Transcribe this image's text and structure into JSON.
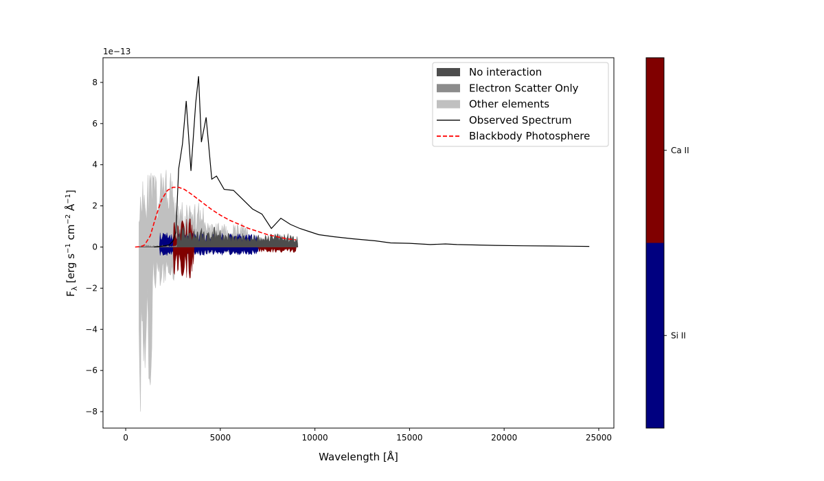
{
  "chart_data": {
    "type": "line",
    "xlabel": "Wavelength [Å]",
    "ylabel": {
      "base": "F",
      "sub": "λ",
      "units_prefix": " [erg s",
      "units_mid1": " cm",
      "units_mid2": " Å",
      "units_suffix": "]",
      "exp": "−1",
      "exp2": "−2"
    },
    "y_multiplier": "1e−13",
    "xlim": [
      -1200,
      25800
    ],
    "ylim": [
      -8.8,
      9.2
    ],
    "x_ticks": [
      0,
      5000,
      10000,
      15000,
      20000,
      25000
    ],
    "x_tick_labels": [
      "0",
      "5000",
      "10000",
      "15000",
      "20000",
      "25000"
    ],
    "y_ticks": [
      -8,
      -6,
      -4,
      -2,
      0,
      2,
      4,
      6,
      8
    ],
    "y_tick_labels": [
      "−8",
      "−6",
      "−4",
      "−2",
      "0",
      "2",
      "4",
      "6",
      "8"
    ],
    "legend": {
      "position": "top-right",
      "entries": [
        {
          "label": "No interaction",
          "kind": "patch",
          "color": "#4d4d4d"
        },
        {
          "label": "Electron Scatter Only",
          "kind": "patch",
          "color": "#8c8c8c"
        },
        {
          "label": "Other elements",
          "kind": "patch",
          "color": "#c0c0c0"
        },
        {
          "label": "Observed Spectrum",
          "kind": "line",
          "color": "#000000"
        },
        {
          "label": "Blackbody Photosphere",
          "kind": "dashed",
          "color": "#ff0000"
        }
      ]
    },
    "colorbar": {
      "segments": [
        {
          "label": "Si II",
          "color": "#000080"
        },
        {
          "label": "Ca II",
          "color": "#800000"
        }
      ]
    },
    "series": [
      {
        "name": "Observed Spectrum",
        "color": "#000000",
        "x": [
          1500,
          2000,
          2300,
          2500,
          2650,
          2800,
          3000,
          3200,
          3450,
          3700,
          3850,
          4000,
          4250,
          4550,
          4800,
          5200,
          5700,
          6200,
          6700,
          7200,
          7700,
          8200,
          8700,
          9200,
          9700,
          10200,
          11000,
          12000,
          13200,
          14000,
          15000,
          16100,
          16900,
          17500,
          18500,
          19500,
          21000,
          22500,
          23500,
          24500
        ],
        "values": [
          0.0,
          0.05,
          0.1,
          0.3,
          0.7,
          3.8,
          5.0,
          7.1,
          3.7,
          7.0,
          8.3,
          5.1,
          6.3,
          3.3,
          3.45,
          2.8,
          2.75,
          2.3,
          1.85,
          1.6,
          0.9,
          1.4,
          1.1,
          0.9,
          0.75,
          0.6,
          0.5,
          0.4,
          0.3,
          0.2,
          0.18,
          0.12,
          0.15,
          0.12,
          0.1,
          0.08,
          0.06,
          0.05,
          0.04,
          0.03
        ]
      },
      {
        "name": "Blackbody Photosphere",
        "color": "#ff0000",
        "x": [
          500,
          800,
          1000,
          1300,
          1600,
          1900,
          2200,
          2500,
          2800,
          3100,
          3500,
          4000,
          4500,
          5000,
          5500,
          6000,
          6500,
          7000,
          7500,
          8000,
          8500,
          9000
        ],
        "values": [
          0.0,
          0.02,
          0.1,
          0.55,
          1.5,
          2.3,
          2.75,
          2.9,
          2.9,
          2.8,
          2.55,
          2.2,
          1.85,
          1.55,
          1.3,
          1.1,
          0.9,
          0.75,
          0.6,
          0.5,
          0.4,
          0.35
        ]
      }
    ]
  }
}
